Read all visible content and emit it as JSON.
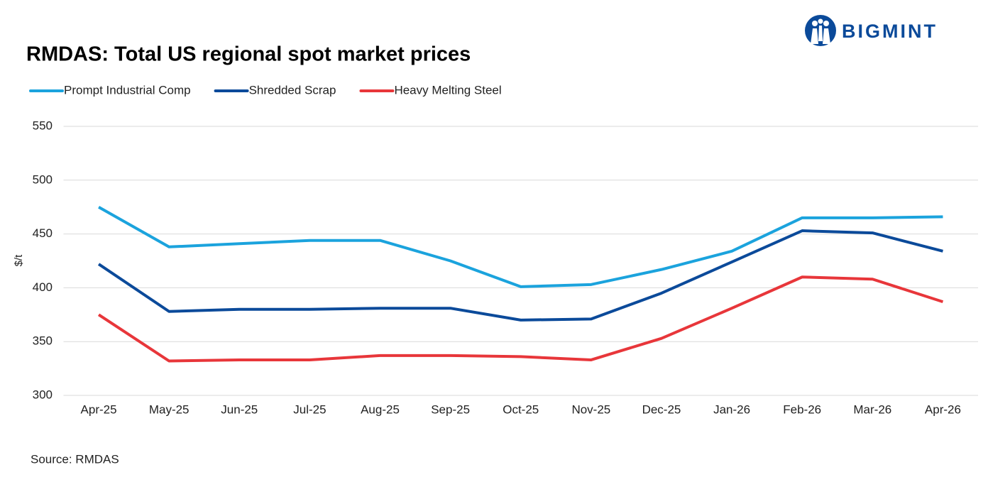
{
  "logo": "BIGMINT",
  "source": "Source: RMDAS",
  "chart_data": {
    "type": "line",
    "title": "RMDAS: Total US regional spot market prices",
    "y_label": "$/t",
    "categories": [
      "Apr-25",
      "May-25",
      "Jun-25",
      "Jul-25",
      "Aug-25",
      "Sep-25",
      "Oct-25",
      "Nov-25",
      "Dec-25",
      "Jan-26",
      "Feb-26",
      "Mar-26",
      "Apr-26"
    ],
    "series": [
      {
        "name": "Prompt Industrial Comp",
        "color": "#1ba3dd",
        "values": [
          475,
          438,
          441,
          444,
          444,
          425,
          401,
          403,
          417,
          434,
          465,
          465,
          466
        ]
      },
      {
        "name": "Shredded Scrap",
        "color": "#0b4a9a",
        "values": [
          422,
          378,
          380,
          380,
          381,
          381,
          370,
          371,
          395,
          424,
          453,
          451,
          434
        ]
      },
      {
        "name": "Heavy Melting Steel",
        "color": "#e8363a",
        "values": [
          375,
          332,
          333,
          333,
          337,
          337,
          336,
          333,
          353,
          381,
          410,
          408,
          387
        ]
      }
    ],
    "ylim": [
      300,
      550
    ],
    "yticks": [
      300,
      350,
      400,
      450,
      500,
      550
    ],
    "grid": true,
    "legend": "top-left"
  }
}
